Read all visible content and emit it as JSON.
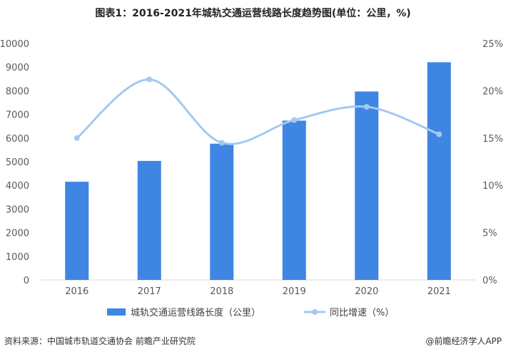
{
  "title": "图表1：2016-2021年城轨交通运营线路长度趋势图(单位：公里，%)",
  "source": "资料来源：中国城市轨道交通协会 前瞻产业研究院",
  "credit": "@前瞻经济学人APP",
  "chart_data": {
    "type": "bar",
    "categories": [
      "2016",
      "2017",
      "2018",
      "2019",
      "2020",
      "2021"
    ],
    "series": [
      {
        "name": "城轨交通运营线路长度（公里）",
        "type": "bar",
        "axis": "left",
        "values": [
          4152,
          5033,
          5761,
          6736,
          7969,
          9206
        ],
        "color": "#3f86e3"
      },
      {
        "name": "同比增速（%）",
        "type": "line",
        "axis": "right",
        "smooth": true,
        "values": [
          15.0,
          21.2,
          14.5,
          16.9,
          18.3,
          15.4
        ],
        "color": "#a4c8f2"
      }
    ],
    "y_left": {
      "lim": [
        0,
        10000
      ],
      "ticks": [
        "0",
        "1000",
        "2000",
        "3000",
        "4000",
        "5000",
        "6000",
        "7000",
        "8000",
        "9000",
        "10000"
      ]
    },
    "y_right": {
      "lim": [
        0,
        25
      ],
      "ticks": [
        "0%",
        "5%",
        "10%",
        "15%",
        "20%",
        "25%"
      ]
    },
    "grid": false,
    "legend_position": "bottom"
  }
}
